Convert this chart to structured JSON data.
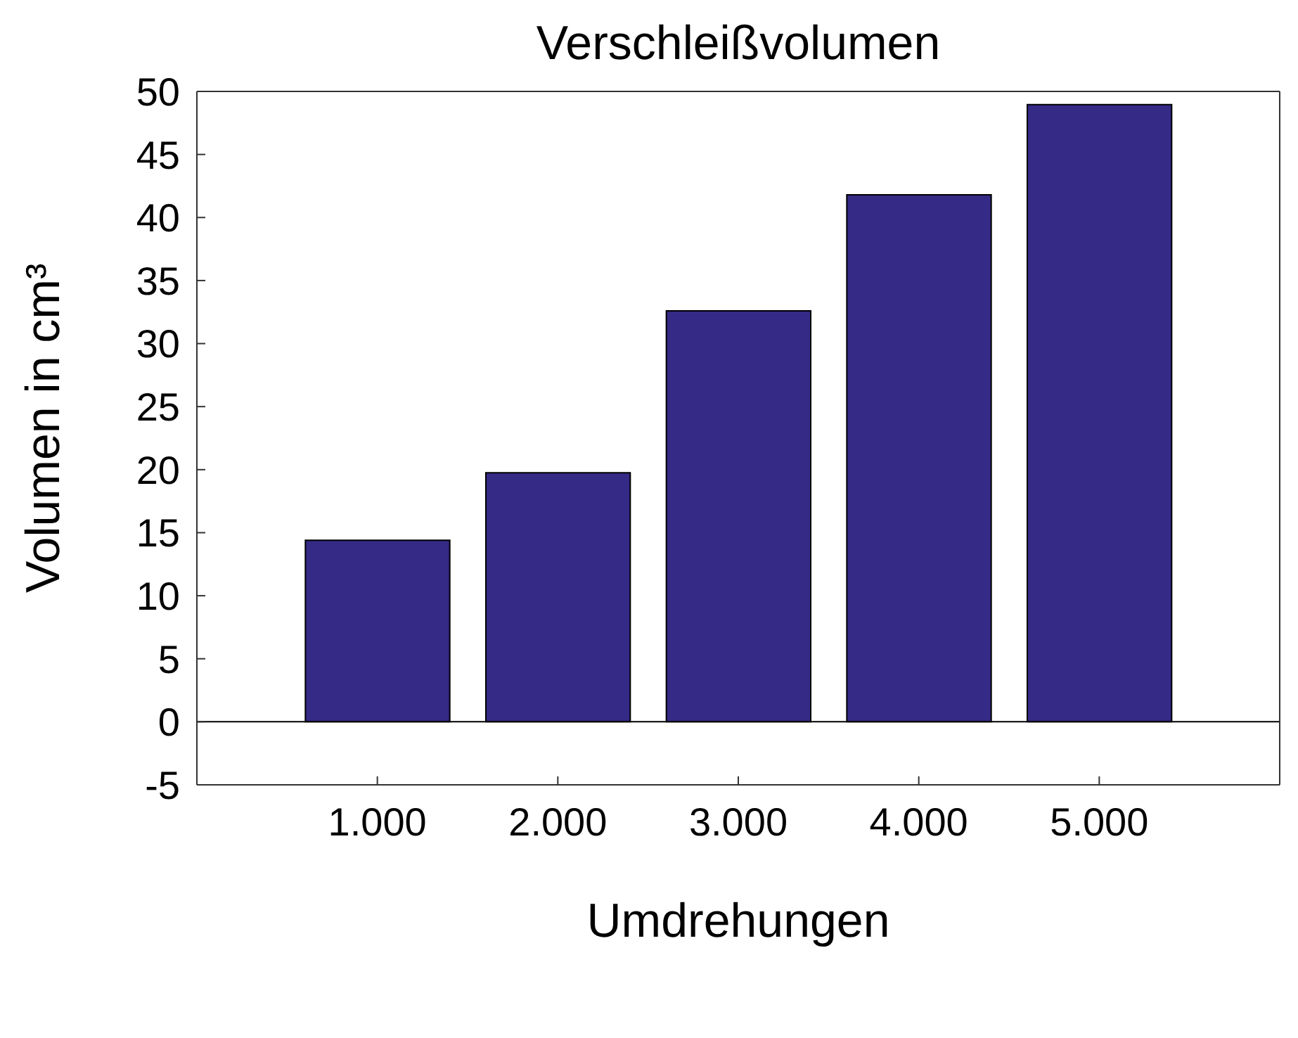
{
  "chart_data": {
    "type": "bar",
    "title": "Verschleißvolumen",
    "xlabel": "Umdrehungen",
    "ylabel": "Volumen in cm³",
    "x": [
      1000,
      2000,
      3000,
      4000,
      5000
    ],
    "values": [
      14.4,
      19.75,
      32.6,
      41.8,
      48.95
    ],
    "color": "#352a85",
    "xlim": [
      0,
      6000
    ],
    "xticks": [
      {
        "value": 1000,
        "label": "1.000"
      },
      {
        "value": 2000,
        "label": "2.000"
      },
      {
        "value": 3000,
        "label": "3.000"
      },
      {
        "value": 4000,
        "label": "4.000"
      },
      {
        "value": 5000,
        "label": "5.000"
      }
    ],
    "ylim": [
      -5,
      50
    ],
    "yticks": [
      -5,
      0,
      5,
      10,
      15,
      20,
      25,
      30,
      35,
      40,
      45,
      50
    ],
    "ref_lines": [
      {
        "axis": "y",
        "value": 0,
        "color": "#000000"
      }
    ],
    "grid": false,
    "legend": false
  }
}
